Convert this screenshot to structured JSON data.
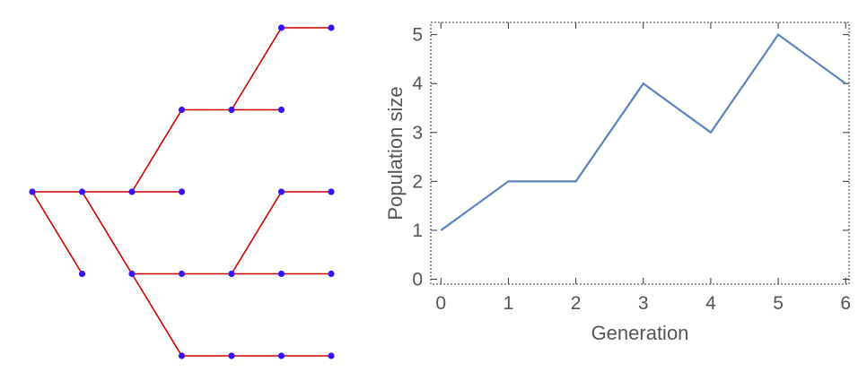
{
  "colors": {
    "tree_edge": "#cc0000",
    "tree_node": "#3a12f0",
    "series_line": "#5b82be",
    "axis": "#333333",
    "text": "#555555"
  },
  "tree": {
    "nodes": [
      {
        "id": "A",
        "generation": 0,
        "row": 0
      },
      {
        "id": "B",
        "generation": 1,
        "row": 0
      },
      {
        "id": "C",
        "generation": 1,
        "row": 1
      },
      {
        "id": "D",
        "generation": 2,
        "row": 0
      },
      {
        "id": "E",
        "generation": 2,
        "row": 1
      },
      {
        "id": "F",
        "generation": 3,
        "row": -1
      },
      {
        "id": "G",
        "generation": 3,
        "row": 0
      },
      {
        "id": "H",
        "generation": 3,
        "row": 1
      },
      {
        "id": "I",
        "generation": 3,
        "row": 2
      },
      {
        "id": "J",
        "generation": 4,
        "row": -1
      },
      {
        "id": "K",
        "generation": 4,
        "row": 1
      },
      {
        "id": "L",
        "generation": 4,
        "row": 2
      },
      {
        "id": "M",
        "generation": 5,
        "row": -2
      },
      {
        "id": "N",
        "generation": 5,
        "row": -1
      },
      {
        "id": "O",
        "generation": 5,
        "row": 0
      },
      {
        "id": "P",
        "generation": 5,
        "row": 1
      },
      {
        "id": "Q",
        "generation": 5,
        "row": 2
      },
      {
        "id": "R",
        "generation": 6,
        "row": -2
      },
      {
        "id": "S",
        "generation": 6,
        "row": 0
      },
      {
        "id": "T",
        "generation": 6,
        "row": 1
      },
      {
        "id": "U",
        "generation": 6,
        "row": 2
      }
    ],
    "edges": [
      [
        "A",
        "B"
      ],
      [
        "A",
        "C"
      ],
      [
        "B",
        "D"
      ],
      [
        "B",
        "E"
      ],
      [
        "D",
        "F"
      ],
      [
        "D",
        "G"
      ],
      [
        "E",
        "H"
      ],
      [
        "E",
        "I"
      ],
      [
        "F",
        "J"
      ],
      [
        "H",
        "K"
      ],
      [
        "I",
        "L"
      ],
      [
        "J",
        "M"
      ],
      [
        "J",
        "N"
      ],
      [
        "K",
        "O"
      ],
      [
        "K",
        "P"
      ],
      [
        "L",
        "Q"
      ],
      [
        "M",
        "R"
      ],
      [
        "O",
        "S"
      ],
      [
        "P",
        "T"
      ],
      [
        "Q",
        "U"
      ]
    ]
  },
  "chart_data": {
    "type": "line",
    "title": "",
    "xlabel": "Generation",
    "ylabel": "Population size",
    "x": [
      0,
      1,
      2,
      3,
      4,
      5,
      6
    ],
    "y": [
      1,
      2,
      2,
      4,
      3,
      5,
      4
    ],
    "xlim": [
      -0.15,
      6.05
    ],
    "ylim": [
      -0.1,
      5.25
    ],
    "xticks": [
      0,
      1,
      2,
      3,
      4,
      5,
      6
    ],
    "yticks": [
      0,
      1,
      2,
      3,
      4,
      5
    ],
    "xtick_labels": [
      "0",
      "1",
      "2",
      "3",
      "4",
      "5",
      "6"
    ],
    "ytick_labels": [
      "0",
      "1",
      "2",
      "3",
      "4",
      "5"
    ],
    "grid": false
  }
}
